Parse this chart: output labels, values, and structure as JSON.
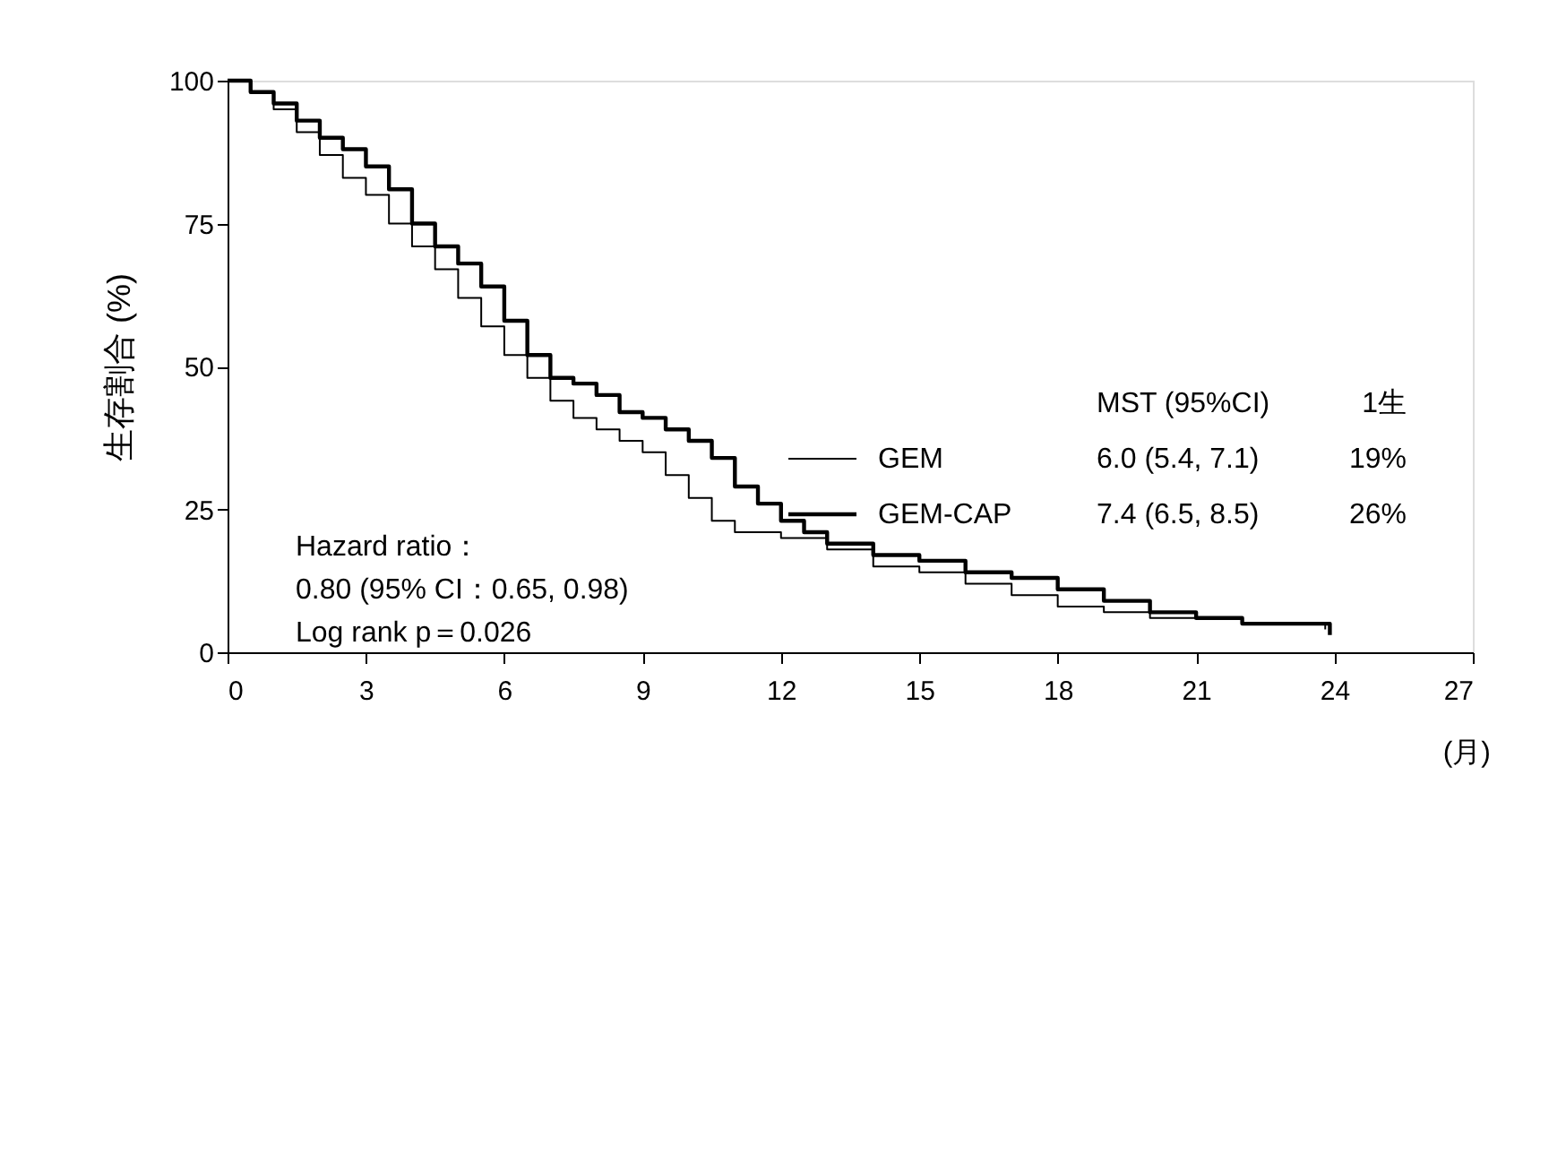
{
  "chart_data": {
    "type": "step",
    "xlabel": "(月)",
    "ylabel": "生存割合 (%)",
    "xlim": [
      0,
      27
    ],
    "xticks": [
      0,
      3,
      6,
      9,
      12,
      15,
      18,
      21,
      24,
      27
    ],
    "ylim": [
      0,
      100
    ],
    "yticks": [
      0,
      25,
      50,
      75,
      100
    ],
    "grid": false,
    "legend": "right",
    "series": [
      {
        "name": "GEM",
        "color": "#000000",
        "x": [
          0,
          0.5,
          1,
          1.5,
          2,
          2.5,
          3,
          3.5,
          4,
          4.5,
          5,
          5.5,
          6,
          6.5,
          7,
          7.5,
          8,
          8.5,
          9,
          9.5,
          10,
          10.5,
          11,
          12,
          13,
          14,
          15,
          16,
          17,
          18,
          19,
          20,
          21,
          22,
          23,
          23.8
        ],
        "values": [
          100,
          98,
          95,
          91,
          87,
          83,
          80,
          75,
          71,
          67,
          62,
          57,
          52,
          48,
          44,
          41,
          39,
          37,
          35,
          31,
          27,
          23,
          21,
          20,
          18,
          15,
          14,
          12,
          10,
          8,
          7,
          6,
          6,
          5,
          5,
          4
        ]
      },
      {
        "name": "GEM-CAP",
        "color": "#000000",
        "x": [
          0,
          0.5,
          1,
          1.5,
          2,
          2.5,
          3,
          3.5,
          4,
          4.5,
          5,
          5.5,
          6,
          6.5,
          7,
          7.5,
          8,
          8.5,
          9,
          9.5,
          10,
          10.5,
          11,
          11.5,
          12,
          12.5,
          13,
          14,
          15,
          16,
          17,
          18,
          19,
          20,
          21,
          22,
          23,
          23.9
        ],
        "values": [
          100,
          98,
          96,
          93,
          90,
          88,
          85,
          81,
          75,
          71,
          68,
          64,
          58,
          52,
          48,
          47,
          45,
          42,
          41,
          39,
          37,
          34,
          29,
          26,
          23,
          21,
          19,
          17,
          16,
          14,
          13,
          11,
          9,
          7,
          6,
          5,
          5,
          3
        ]
      }
    ],
    "annotations": [
      "MST (95%CI)",
      "1生",
      "6.0 (5.4, 7.1)",
      "19%",
      "7.4 (6.5, 8.5)",
      "26%",
      "Hazard ratio：",
      "0.80 (95% CI：0.65, 0.98)",
      "Log rank p＝0.026"
    ]
  }
}
